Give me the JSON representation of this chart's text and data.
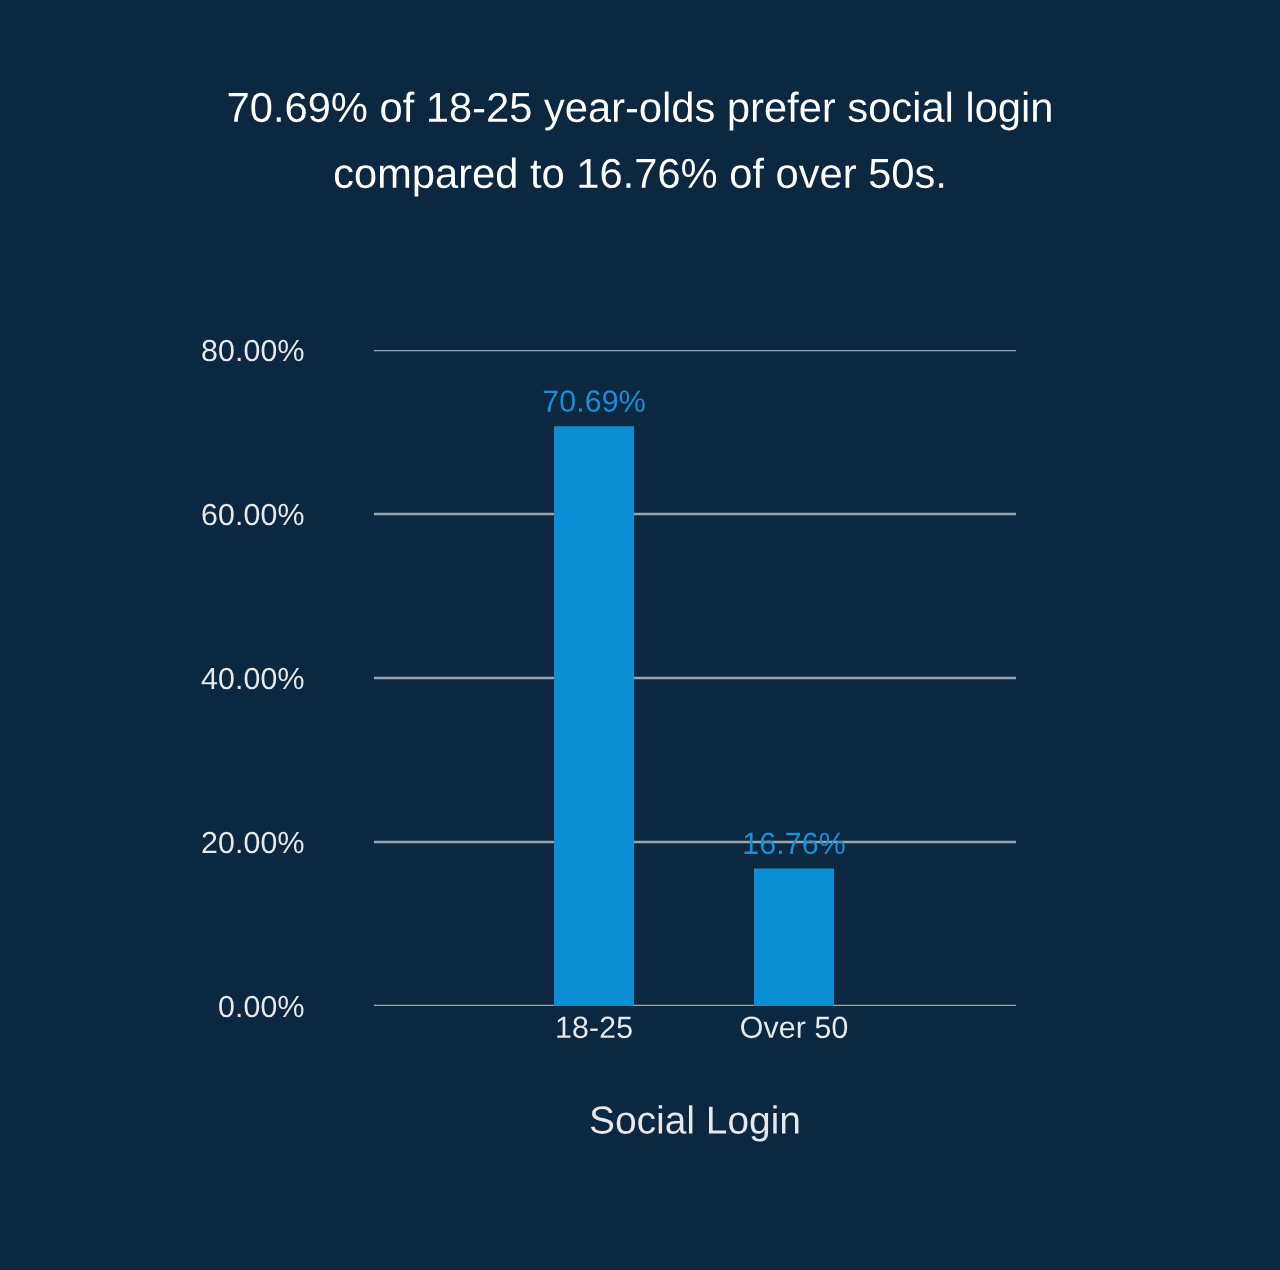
{
  "chart_data": {
    "type": "bar",
    "title": "70.69% of 18-25 year-olds prefer social login\ncompared to 16.76% of over 50s.",
    "xlabel": "Social Login",
    "categories": [
      "18-25",
      "Over 50"
    ],
    "values": [
      70.69,
      16.76
    ],
    "color": "#0a8fd6",
    "value_labels": [
      "70.69%",
      "16.76%"
    ],
    "ylim": [
      0,
      80
    ],
    "yticks": [
      {
        "value": 0,
        "label": "0.00%"
      },
      {
        "value": 20,
        "label": "20.00%"
      },
      {
        "value": 40,
        "label": "40.00%"
      },
      {
        "value": 60,
        "label": "60.00%"
      },
      {
        "value": 80,
        "label": "80.00%"
      }
    ],
    "grid": "y",
    "legend": false
  }
}
